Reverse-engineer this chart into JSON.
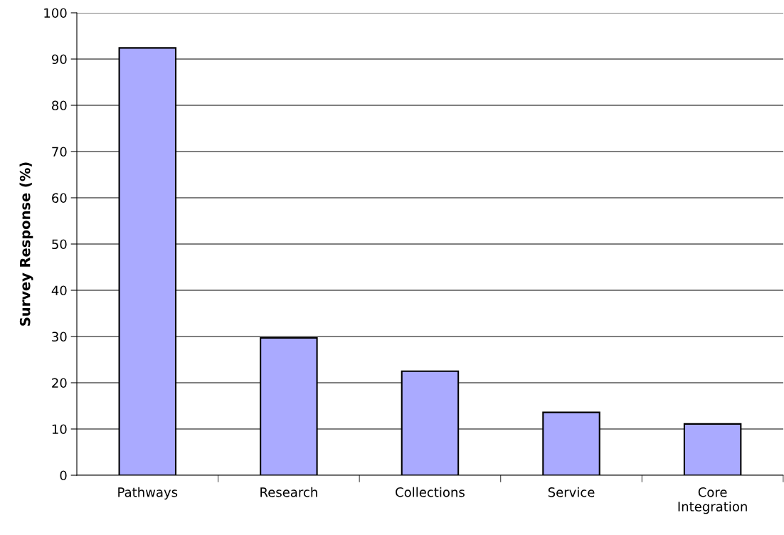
{
  "chart_data": {
    "type": "bar",
    "ylabel": "Survey Response (%)",
    "categories": [
      "Pathways",
      "Research",
      "Collections",
      "Service",
      "Core\nIntegration"
    ],
    "values": [
      92.4,
      29.7,
      22.5,
      13.6,
      11.1
    ],
    "color": "#aaaaff",
    "ylim": [
      0,
      100
    ],
    "yticks": [
      0,
      10,
      20,
      30,
      40,
      50,
      60,
      70,
      80,
      90,
      100
    ],
    "grid": "y",
    "legend": false
  }
}
